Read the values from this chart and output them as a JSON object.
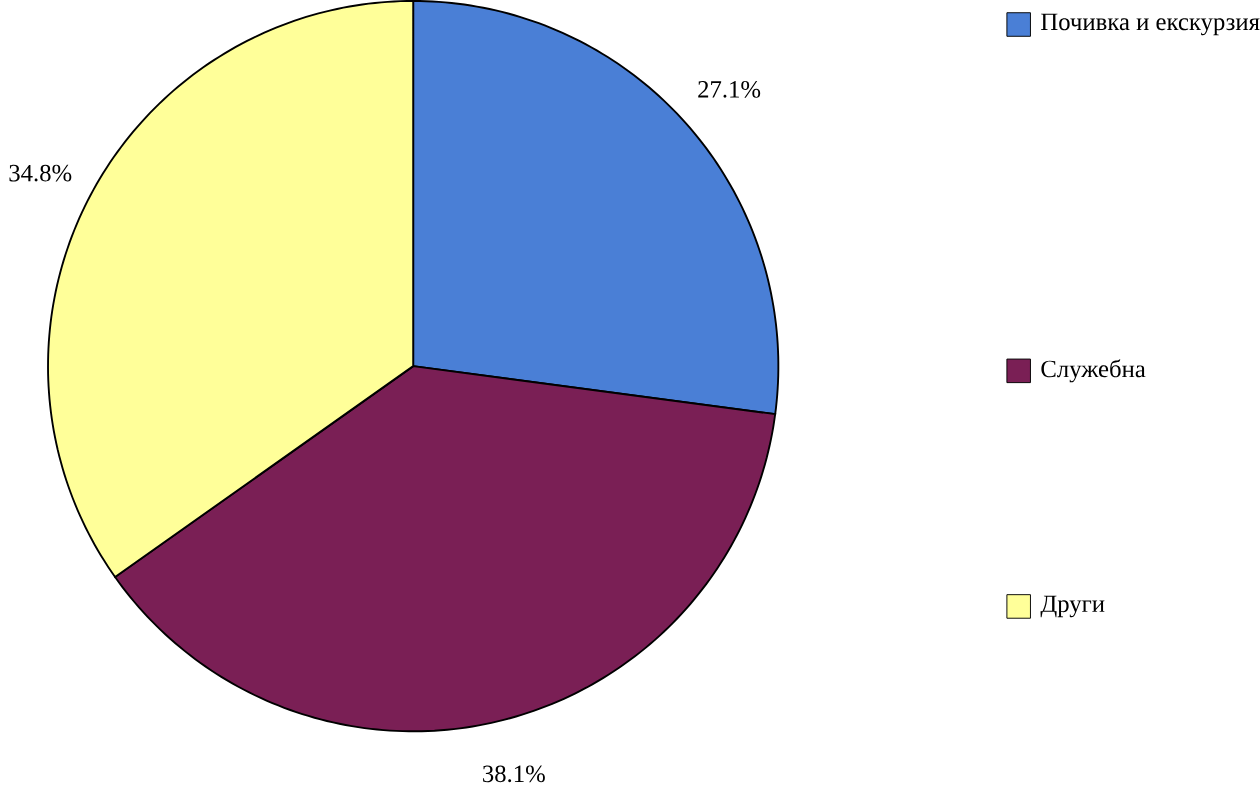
{
  "chart_data": {
    "type": "pie",
    "categories": [
      "Почивка и екскурзия",
      "Служебна",
      "Други"
    ],
    "values": [
      27.1,
      38.1,
      34.8
    ],
    "colors": [
      "#4a7fd6",
      "#7a1f55",
      "#ffff99"
    ],
    "value_labels": [
      "27.1%",
      "38.1%",
      "34.8%"
    ],
    "legend": "right"
  }
}
